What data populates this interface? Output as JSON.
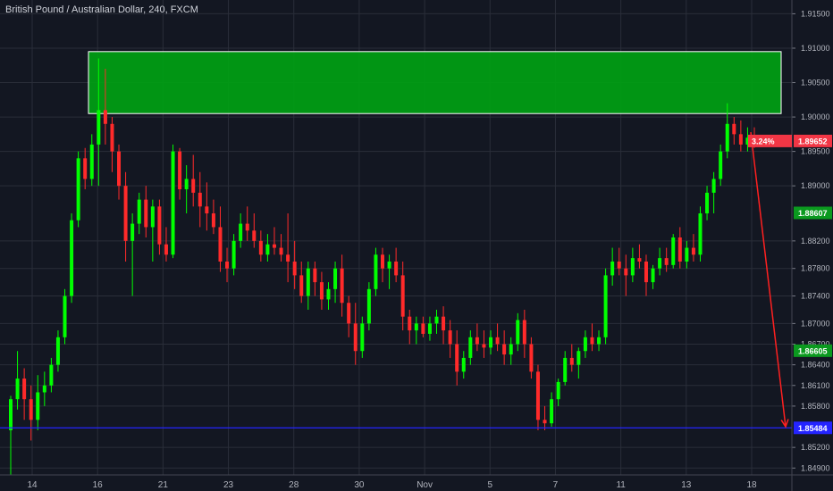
{
  "header": {
    "symbol": "British Pound / Australian Dollar",
    "interval": "240",
    "source": "FXCM"
  },
  "colors": {
    "background": "#131722",
    "grid": "#2a2e39",
    "up": "#00ff00",
    "down": "#ff2a2a",
    "zone_fill": "#00a113",
    "zone_border": "#ffffff",
    "support_line": "#2424ff",
    "arrow": "#ff2020",
    "tag_red": "#f23645",
    "tag_green": "#0b9a1f",
    "tag_blue": "#2424ff"
  },
  "chart_data": {
    "type": "candlestick",
    "title": "British Pound / Australian Dollar, 240, FXCM",
    "ylim": [
      1.848,
      1.917
    ],
    "y_ticks": [
      "1.91500",
      "1.91000",
      "1.90500",
      "1.90000",
      "1.89500",
      "1.89000",
      "1.88200",
      "1.87800",
      "1.87400",
      "1.87000",
      "1.86700",
      "1.86400",
      "1.86100",
      "1.85800",
      "1.85200",
      "1.84900"
    ],
    "x_ticks": [
      "14",
      "16",
      "21",
      "23",
      "28",
      "30",
      "Nov",
      "5",
      "7",
      "11",
      "13",
      "18"
    ],
    "grid": true,
    "candles": [
      [
        1.8545,
        1.8595,
        1.848,
        1.859
      ],
      [
        1.859,
        1.866,
        1.8575,
        1.862
      ],
      [
        1.862,
        1.8635,
        1.856,
        1.859
      ],
      [
        1.859,
        1.861,
        1.853,
        1.856
      ],
      [
        1.856,
        1.8625,
        1.8545,
        1.86
      ],
      [
        1.86,
        1.863,
        1.858,
        1.861
      ],
      [
        1.861,
        1.865,
        1.86,
        1.864
      ],
      [
        1.864,
        1.869,
        1.863,
        1.868
      ],
      [
        1.868,
        1.875,
        1.867,
        1.874
      ],
      [
        1.874,
        1.886,
        1.873,
        1.885
      ],
      [
        1.885,
        1.895,
        1.884,
        1.894
      ],
      [
        1.894,
        1.8955,
        1.8895,
        1.891
      ],
      [
        1.891,
        1.8975,
        1.89,
        1.896
      ],
      [
        1.896,
        1.9085,
        1.89,
        1.901
      ],
      [
        1.901,
        1.907,
        1.896,
        1.899
      ],
      [
        1.899,
        1.9,
        1.892,
        1.895
      ],
      [
        1.895,
        1.896,
        1.888,
        1.89
      ],
      [
        1.89,
        1.892,
        1.879,
        1.882
      ],
      [
        1.882,
        1.886,
        1.874,
        1.8845
      ],
      [
        1.8845,
        1.889,
        1.883,
        1.888
      ],
      [
        1.888,
        1.89,
        1.8825,
        1.884
      ],
      [
        1.884,
        1.888,
        1.879,
        1.887
      ],
      [
        1.887,
        1.888,
        1.88,
        1.8815
      ],
      [
        1.8815,
        1.884,
        1.879,
        1.88
      ],
      [
        1.88,
        1.896,
        1.8795,
        1.895
      ],
      [
        1.895,
        1.8955,
        1.888,
        1.8895
      ],
      [
        1.8895,
        1.893,
        1.886,
        1.891
      ],
      [
        1.891,
        1.8945,
        1.887,
        1.889
      ],
      [
        1.889,
        1.892,
        1.884,
        1.887
      ],
      [
        1.887,
        1.8905,
        1.8835,
        1.886
      ],
      [
        1.886,
        1.888,
        1.883,
        1.884
      ],
      [
        1.884,
        1.887,
        1.8775,
        1.879
      ],
      [
        1.879,
        1.881,
        1.876,
        1.878
      ],
      [
        1.878,
        1.883,
        1.877,
        1.882
      ],
      [
        1.882,
        1.886,
        1.881,
        1.8845
      ],
      [
        1.8845,
        1.887,
        1.882,
        1.8835
      ],
      [
        1.8835,
        1.886,
        1.881,
        1.882
      ],
      [
        1.882,
        1.8835,
        1.879,
        1.88
      ],
      [
        1.88,
        1.883,
        1.879,
        1.8815
      ],
      [
        1.8815,
        1.884,
        1.88,
        1.881
      ],
      [
        1.881,
        1.883,
        1.879,
        1.88
      ],
      [
        1.88,
        1.886,
        1.876,
        1.879
      ],
      [
        1.879,
        1.882,
        1.875,
        1.877
      ],
      [
        1.877,
        1.879,
        1.873,
        1.874
      ],
      [
        1.874,
        1.879,
        1.872,
        1.878
      ],
      [
        1.878,
        1.879,
        1.874,
        1.876
      ],
      [
        1.876,
        1.8775,
        1.872,
        1.8735
      ],
      [
        1.8735,
        1.876,
        1.872,
        1.875
      ],
      [
        1.875,
        1.879,
        1.873,
        1.878
      ],
      [
        1.878,
        1.88,
        1.871,
        1.873
      ],
      [
        1.873,
        1.874,
        1.868,
        1.87
      ],
      [
        1.87,
        1.873,
        1.864,
        1.866
      ],
      [
        1.866,
        1.871,
        1.865,
        1.87
      ],
      [
        1.87,
        1.876,
        1.869,
        1.875
      ],
      [
        1.875,
        1.881,
        1.874,
        1.88
      ],
      [
        1.88,
        1.881,
        1.876,
        1.878
      ],
      [
        1.878,
        1.88,
        1.875,
        1.879
      ],
      [
        1.879,
        1.881,
        1.876,
        1.877
      ],
      [
        1.877,
        1.879,
        1.869,
        1.871
      ],
      [
        1.871,
        1.872,
        1.867,
        1.869
      ],
      [
        1.869,
        1.871,
        1.867,
        1.87
      ],
      [
        1.87,
        1.871,
        1.868,
        1.8685
      ],
      [
        1.8685,
        1.871,
        1.8675,
        1.87
      ],
      [
        1.87,
        1.872,
        1.8685,
        1.871
      ],
      [
        1.871,
        1.8725,
        1.867,
        1.869
      ],
      [
        1.869,
        1.8705,
        1.865,
        1.867
      ],
      [
        1.867,
        1.869,
        1.861,
        1.863
      ],
      [
        1.863,
        1.866,
        1.862,
        1.865
      ],
      [
        1.865,
        1.869,
        1.864,
        1.868
      ],
      [
        1.868,
        1.87,
        1.866,
        1.867
      ],
      [
        1.867,
        1.869,
        1.865,
        1.8665
      ],
      [
        1.8665,
        1.869,
        1.8655,
        1.868
      ],
      [
        1.868,
        1.87,
        1.866,
        1.867
      ],
      [
        1.867,
        1.869,
        1.864,
        1.8655
      ],
      [
        1.8655,
        1.868,
        1.864,
        1.867
      ],
      [
        1.867,
        1.8715,
        1.866,
        1.8705
      ],
      [
        1.8705,
        1.872,
        1.865,
        1.867
      ],
      [
        1.867,
        1.868,
        1.862,
        1.863
      ],
      [
        1.863,
        1.864,
        1.8545,
        1.856
      ],
      [
        1.856,
        1.858,
        1.8545,
        1.8555
      ],
      [
        1.8555,
        1.86,
        1.855,
        1.859
      ],
      [
        1.859,
        1.862,
        1.858,
        1.8615
      ],
      [
        1.8615,
        1.866,
        1.861,
        1.865
      ],
      [
        1.865,
        1.867,
        1.863,
        1.864
      ],
      [
        1.864,
        1.8665,
        1.862,
        1.866
      ],
      [
        1.866,
        1.869,
        1.865,
        1.868
      ],
      [
        1.868,
        1.87,
        1.866,
        1.867
      ],
      [
        1.867,
        1.869,
        1.866,
        1.868
      ],
      [
        1.868,
        1.878,
        1.867,
        1.877
      ],
      [
        1.877,
        1.881,
        1.8755,
        1.879
      ],
      [
        1.879,
        1.881,
        1.877,
        1.878
      ],
      [
        1.878,
        1.88,
        1.874,
        1.877
      ],
      [
        1.877,
        1.881,
        1.876,
        1.8795
      ],
      [
        1.8795,
        1.8815,
        1.878,
        1.879
      ],
      [
        1.879,
        1.88,
        1.874,
        1.876
      ],
      [
        1.876,
        1.8785,
        1.875,
        1.878
      ],
      [
        1.878,
        1.881,
        1.877,
        1.8795
      ],
      [
        1.8795,
        1.881,
        1.8775,
        1.8785
      ],
      [
        1.8785,
        1.883,
        1.878,
        1.8825
      ],
      [
        1.8825,
        1.884,
        1.878,
        1.879
      ],
      [
        1.879,
        1.882,
        1.878,
        1.881
      ],
      [
        1.881,
        1.883,
        1.879,
        1.88
      ],
      [
        1.88,
        1.887,
        1.879,
        1.886
      ],
      [
        1.886,
        1.89,
        1.885,
        1.889
      ],
      [
        1.889,
        1.892,
        1.886,
        1.891
      ],
      [
        1.891,
        1.896,
        1.89,
        1.895
      ],
      [
        1.895,
        1.902,
        1.894,
        1.899
      ],
      [
        1.899,
        1.9,
        1.896,
        1.8975
      ],
      [
        1.8975,
        1.8995,
        1.895,
        1.896
      ],
      [
        1.896,
        1.8985,
        1.895,
        1.897
      ],
      [
        1.897,
        1.8985,
        1.8955,
        1.8965
      ]
    ],
    "demand_zone": {
      "top": 1.9095,
      "bottom": 1.9005
    },
    "support_level": 1.85484,
    "price_labels": {
      "current": {
        "text": "1.89652",
        "percent": "3.24%",
        "value": 1.89652
      },
      "upper_green": {
        "text": "1.88607",
        "value": 1.88607
      },
      "lower_green": {
        "text": "1.86605",
        "value": 1.86605
      },
      "support": {
        "text": "1.85484",
        "value": 1.85484
      }
    },
    "arrow": {
      "from": 1.8978,
      "to": 1.855
    }
  }
}
